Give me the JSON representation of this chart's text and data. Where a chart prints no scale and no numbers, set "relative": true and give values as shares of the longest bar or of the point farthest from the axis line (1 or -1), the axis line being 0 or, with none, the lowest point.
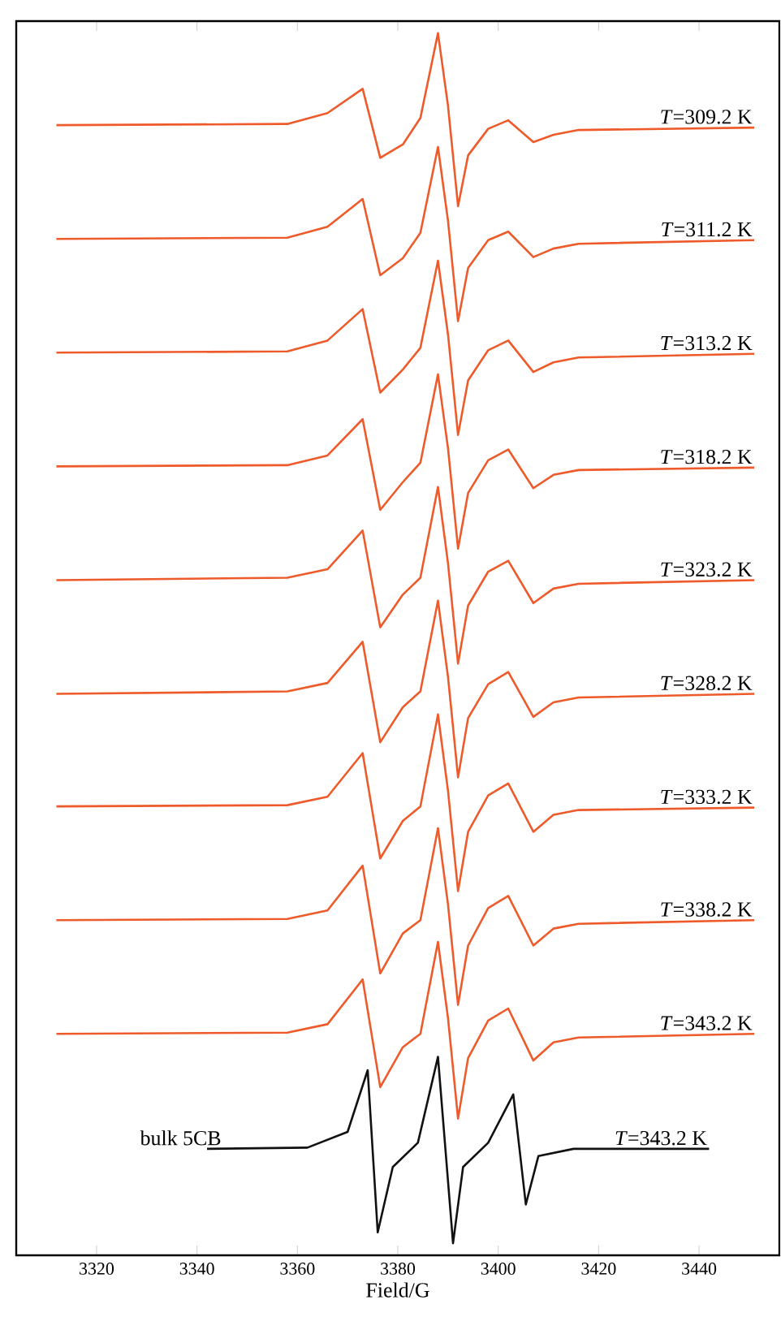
{
  "chart_data": {
    "type": "line",
    "relative": true,
    "xlabel": "Field/G",
    "xlim": [
      3304,
      3456
    ],
    "xticks": [
      3320,
      3340,
      3360,
      3380,
      3400,
      3420,
      3440
    ],
    "x": [
      3312,
      3358,
      3366,
      3373,
      3376.5,
      3381,
      3384.5,
      3388,
      3390,
      3392,
      3394,
      3398,
      3402,
      3407,
      3411,
      3416,
      3451
    ],
    "series": [
      {
        "name": "*T*=309.2 K",
        "color": "#ee5a2a",
        "values": [
          0.924,
          0.925,
          0.934,
          0.954,
          0.897,
          0.908,
          0.93,
          1.0,
          0.94,
          0.857,
          0.899,
          0.921,
          0.928,
          0.91,
          0.916,
          0.92,
          0.922
        ]
      },
      {
        "name": "*T*=311.2 K",
        "color": "#ee5a2a",
        "values": [
          0.83,
          0.831,
          0.84,
          0.863,
          0.8,
          0.814,
          0.835,
          0.906,
          0.845,
          0.762,
          0.806,
          0.829,
          0.836,
          0.815,
          0.822,
          0.826,
          0.829
        ]
      },
      {
        "name": "*T*=313.2 K",
        "color": "#ee5a2a",
        "values": [
          0.736,
          0.737,
          0.746,
          0.772,
          0.703,
          0.722,
          0.74,
          0.812,
          0.751,
          0.668,
          0.713,
          0.738,
          0.746,
          0.72,
          0.728,
          0.732,
          0.735
        ]
      },
      {
        "name": "*T*=318.2 K",
        "color": "#ee5a2a",
        "values": [
          0.642,
          0.643,
          0.651,
          0.681,
          0.606,
          0.629,
          0.645,
          0.718,
          0.657,
          0.574,
          0.62,
          0.647,
          0.656,
          0.624,
          0.635,
          0.639,
          0.641
        ]
      },
      {
        "name": "*T*=323.2 K",
        "color": "#ee5a2a",
        "values": [
          0.548,
          0.55,
          0.557,
          0.589,
          0.509,
          0.536,
          0.55,
          0.625,
          0.562,
          0.479,
          0.527,
          0.555,
          0.564,
          0.529,
          0.541,
          0.545,
          0.548
        ]
      },
      {
        "name": "*T*=328.2 K",
        "color": "#ee5a2a",
        "values": [
          0.454,
          0.456,
          0.463,
          0.497,
          0.414,
          0.443,
          0.456,
          0.531,
          0.468,
          0.385,
          0.434,
          0.462,
          0.472,
          0.435,
          0.447,
          0.451,
          0.454
        ]
      },
      {
        "name": "*T*=333.2 K",
        "color": "#ee5a2a",
        "values": [
          0.361,
          0.362,
          0.369,
          0.405,
          0.318,
          0.349,
          0.361,
          0.437,
          0.374,
          0.291,
          0.34,
          0.37,
          0.38,
          0.34,
          0.354,
          0.358,
          0.36
        ]
      },
      {
        "name": "*T*=338.2 K",
        "color": "#ee5a2a",
        "values": [
          0.267,
          0.268,
          0.275,
          0.312,
          0.223,
          0.256,
          0.267,
          0.343,
          0.28,
          0.197,
          0.246,
          0.277,
          0.287,
          0.246,
          0.26,
          0.264,
          0.267
        ]
      },
      {
        "name": "*T*=343.2 K",
        "color": "#ee5a2a",
        "values": [
          0.173,
          0.174,
          0.181,
          0.218,
          0.129,
          0.162,
          0.173,
          0.249,
          0.186,
          0.103,
          0.153,
          0.184,
          0.194,
          0.151,
          0.166,
          0.17,
          0.173
        ]
      },
      {
        "name": "*T*=343.2 K",
        "color": "#111111",
        "x": [
          3342,
          3362,
          3370,
          3374,
          3376,
          3379,
          3384,
          3388,
          3391,
          3393,
          3398,
          3403,
          3405.5,
          3408,
          3415,
          3442
        ],
        "values": [
          0.078,
          0.079,
          0.092,
          0.143,
          0.009,
          0.063,
          0.083,
          0.154,
          0.0,
          0.063,
          0.083,
          0.123,
          0.032,
          0.072,
          0.078,
          0.078
        ]
      }
    ],
    "annotations": [
      "bulk 5CB"
    ]
  }
}
